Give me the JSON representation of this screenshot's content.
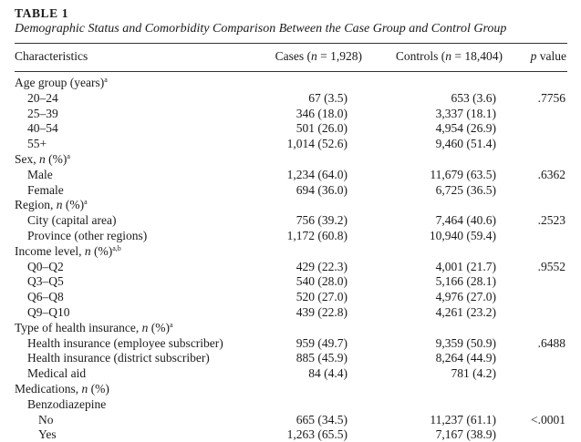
{
  "table": {
    "label": "TABLE 1",
    "caption": "Demographic Status and Comorbidity Comparison Between the Case Group and Control Group",
    "headers": {
      "characteristics": "Characteristics",
      "cases": "Cases (",
      "cases_n": "n",
      "cases_rest": " = 1,928)",
      "controls": "Controls (",
      "controls_n": "n",
      "controls_rest": " = 18,404)",
      "pvalue_p": "p",
      "pvalue_rest": " value"
    },
    "rows": [
      {
        "label": "Age group (years)",
        "sup": "a",
        "level": 0
      },
      {
        "label": "20–24",
        "level": 1,
        "cases": "67 (3.5)",
        "controls": "653 (3.6)",
        "p": ".7756"
      },
      {
        "label": "25–39",
        "level": 1,
        "cases": "346 (18.0)",
        "controls": "3,337 (18.1)"
      },
      {
        "label": "40–54",
        "level": 1,
        "cases": "501 (26.0)",
        "controls": "4,954 (26.9)"
      },
      {
        "label": "55+",
        "level": 1,
        "cases": "1,014 (52.6)",
        "controls": "9,460 (51.4)"
      },
      {
        "label": "Sex, ",
        "italic": "n",
        "label_rest": " (%)",
        "sup": "a",
        "level": 0
      },
      {
        "label": "Male",
        "level": 1,
        "cases": "1,234 (64.0)",
        "controls": "11,679 (63.5)",
        "p": ".6362"
      },
      {
        "label": "Female",
        "level": 1,
        "cases": "694 (36.0)",
        "controls": "6,725 (36.5)"
      },
      {
        "label": "Region, ",
        "italic": "n",
        "label_rest": " (%)",
        "sup": "a",
        "level": 0
      },
      {
        "label": "City (capital area)",
        "level": 1,
        "cases": "756 (39.2)",
        "controls": "7,464 (40.6)",
        "p": ".2523"
      },
      {
        "label": "Province (other regions)",
        "level": 1,
        "cases": "1,172 (60.8)",
        "controls": "10,940 (59.4)"
      },
      {
        "label": "Income level, ",
        "italic": "n",
        "label_rest": " (%)",
        "sup": "a,b",
        "level": 0
      },
      {
        "label": "Q0–Q2",
        "level": 1,
        "cases": "429 (22.3)",
        "controls": "4,001 (21.7)",
        "p": ".9552"
      },
      {
        "label": "Q3–Q5",
        "level": 1,
        "cases": "540 (28.0)",
        "controls": "5,166 (28.1)"
      },
      {
        "label": "Q6–Q8",
        "level": 1,
        "cases": "520 (27.0)",
        "controls": "4,976 (27.0)"
      },
      {
        "label": "Q9–Q10",
        "level": 1,
        "cases": "439 (22.8)",
        "controls": "4,261 (23.2)"
      },
      {
        "label": "Type of health insurance, ",
        "italic": "n",
        "label_rest": " (%)",
        "sup": "a",
        "level": 0
      },
      {
        "label": "Health insurance (employee subscriber)",
        "level": 1,
        "cases": "959 (49.7)",
        "controls": "9,359 (50.9)",
        "p": ".6488"
      },
      {
        "label": "Health insurance (district subscriber)",
        "level": 1,
        "cases": "885 (45.9)",
        "controls": "8,264 (44.9)"
      },
      {
        "label": "Medical aid",
        "level": 1,
        "cases": "84 (4.4)",
        "controls": "781 (4.2)"
      },
      {
        "label": "Medications, ",
        "italic": "n",
        "label_rest": " (%)",
        "level": 0
      },
      {
        "label": "Benzodiazepine",
        "level": 1
      },
      {
        "label": "No",
        "level": 2,
        "cases": "665 (34.5)",
        "controls": "11,237 (61.1)",
        "p": "<.0001"
      },
      {
        "label": "Yes",
        "level": 2,
        "cases": "1,263 (65.5)",
        "controls": "7,167 (38.9)"
      }
    ]
  }
}
